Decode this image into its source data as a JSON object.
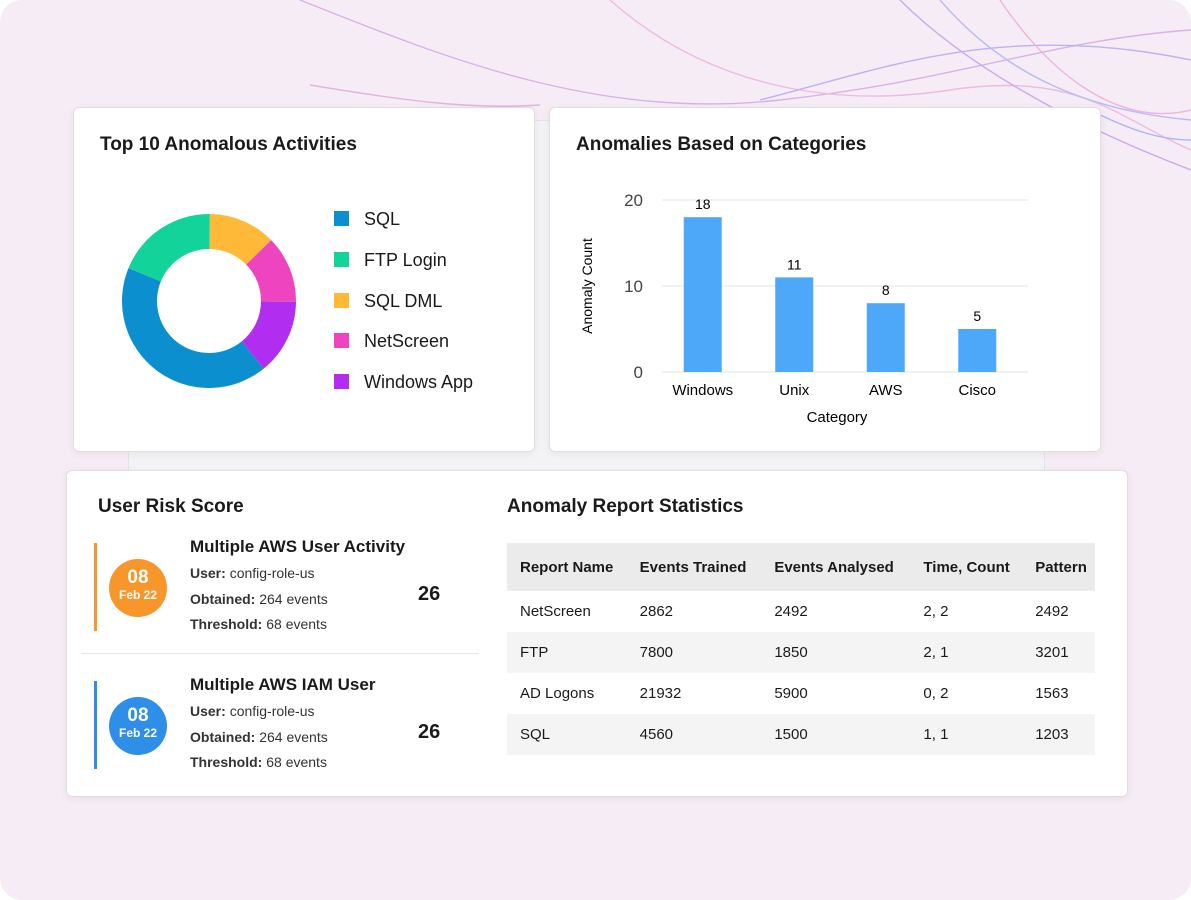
{
  "chart_data": [
    {
      "type": "pie",
      "donut": true,
      "title": "Top 10 Anomalous Activities",
      "categories": [
        "SQL",
        "FTP Login",
        "SQL DML",
        "NetScreen",
        "Windows App"
      ],
      "values": [
        42,
        19,
        12.5,
        12.5,
        14
      ],
      "colors": [
        "#0c8fcf",
        "#12d39a",
        "#ffb938",
        "#ef44c0",
        "#b12ef0"
      ]
    },
    {
      "type": "bar",
      "title": "Anomalies Based on Categories",
      "xlabel": "Category",
      "ylabel": "Anomaly Count",
      "categories": [
        "Windows",
        "Unix",
        "AWS",
        "Cisco"
      ],
      "values": [
        18,
        11,
        8,
        5
      ],
      "color": "#4ea8fa",
      "ylim": [
        0,
        20
      ],
      "yticks": [
        0,
        10,
        20
      ],
      "grid": true
    }
  ],
  "risk": {
    "title": "User Risk Score",
    "items": [
      {
        "day": "08",
        "month": "Feb 22",
        "color": "#f7962b",
        "title": "Multiple AWS User Activity",
        "fields": [
          {
            "label": "User:",
            "value": "config-role-us"
          },
          {
            "label": "Obtained:",
            "value": "264 events"
          },
          {
            "label": "Threshold:",
            "value": "68 events"
          }
        ],
        "score": 26
      },
      {
        "day": "08",
        "month": "Feb 22",
        "color": "#2e8ee8",
        "title": "Multiple AWS IAM User",
        "fields": [
          {
            "label": "User:",
            "value": "config-role-us"
          },
          {
            "label": "Obtained:",
            "value": "264 events"
          },
          {
            "label": "Threshold:",
            "value": "68 events"
          }
        ],
        "score": 26
      }
    ]
  },
  "table": {
    "title": "Anomaly Report Statistics",
    "header": [
      "Report Name",
      "Events Trained",
      "Events Analysed",
      "Time, Count",
      "Pattern"
    ],
    "rows": [
      [
        "NetScreen",
        2862,
        2492,
        "2, 2",
        2492
      ],
      [
        "FTP",
        7800,
        1850,
        "2, 1",
        3201
      ],
      [
        "AD Logons",
        21932,
        5900,
        "0, 2",
        1563
      ],
      [
        "SQL",
        4560,
        1500,
        "1, 1",
        1203
      ]
    ]
  }
}
